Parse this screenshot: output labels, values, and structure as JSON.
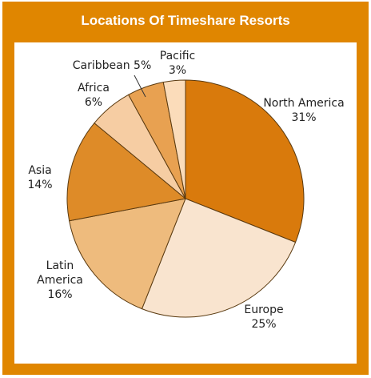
{
  "chart_data": {
    "type": "pie",
    "title": "Locations Of Timeshare Resorts",
    "categories": [
      "North America",
      "Europe",
      "Latin America",
      "Asia",
      "Africa",
      "Caribbean",
      "Pacific"
    ],
    "values": [
      31,
      25,
      16,
      14,
      6,
      5,
      3
    ],
    "value_labels": [
      "31%",
      "25%",
      "16%",
      "14%",
      "6%",
      "5%",
      "3%"
    ],
    "colors": [
      "#d97a0c",
      "#f9e4cf",
      "#eebb7d",
      "#de8b28",
      "#f6cda3",
      "#e8a151",
      "#fbdcba"
    ]
  }
}
